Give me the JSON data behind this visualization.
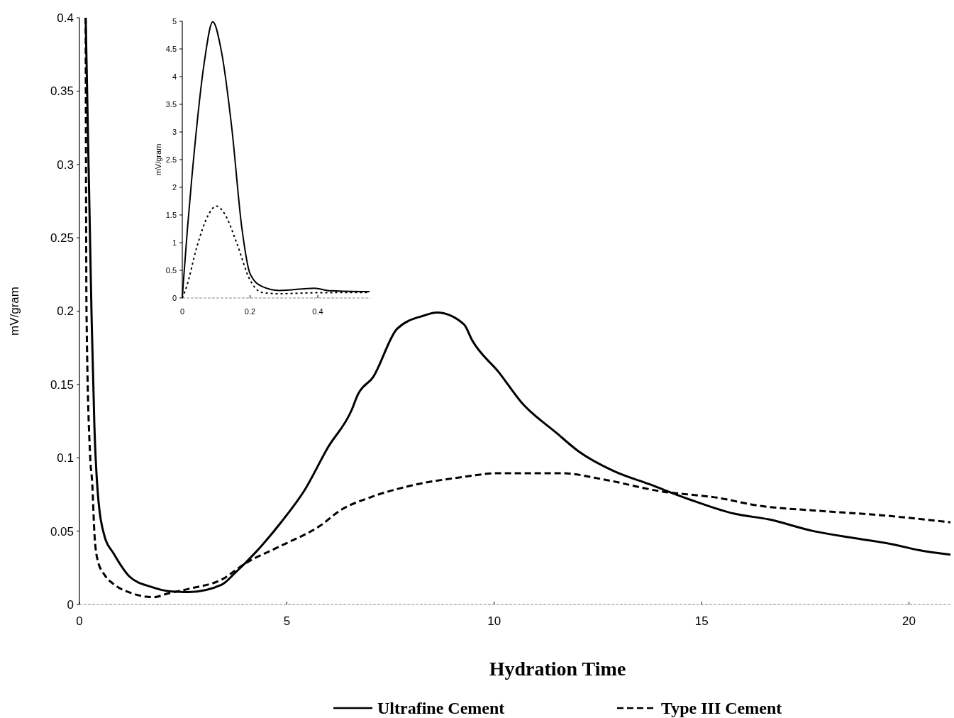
{
  "chart_data": [
    {
      "type": "line",
      "xlabel": "Hydration Time",
      "ylabel": "mV/gram",
      "xlim": [
        0,
        21
      ],
      "ylim": [
        0,
        0.4
      ],
      "xticks": [
        0,
        5,
        10,
        15,
        20
      ],
      "yticks": [
        0,
        0.05,
        0.1,
        0.15,
        0.2,
        0.25,
        0.3,
        0.35,
        0.4
      ],
      "grid": false,
      "legend": "bottom",
      "marker": "none",
      "series": [
        {
          "name": "Ultrafine Cement",
          "color": "#000000",
          "line_style": "solid",
          "x": [
            0.15,
            0.29,
            0.36,
            0.44,
            0.61,
            0.82,
            1.21,
            1.73,
            2.18,
            2.64,
            3.43,
            3.77,
            4.23,
            4.86,
            5.43,
            5.99,
            6.57,
            6.71,
            7.08,
            7.66,
            8.31,
            8.62,
            9.27,
            9.47,
            10.12,
            10.65,
            11.5,
            12.03,
            12.88,
            13.74,
            14.71,
            15.77,
            16.62,
            17.7,
            18.75,
            19.61,
            20.25,
            21
          ],
          "values": [
            0.4,
            0.2,
            0.122,
            0.077,
            0.046,
            0.035,
            0.019,
            0.012,
            0.009,
            0.0085,
            0.0135,
            0.022,
            0.035,
            0.056,
            0.078,
            0.107,
            0.133,
            0.143,
            0.155,
            0.188,
            0.197,
            0.199,
            0.191,
            0.18,
            0.158,
            0.138,
            0.117,
            0.1045,
            0.091,
            0.082,
            0.0716,
            0.062,
            0.058,
            0.05,
            0.045,
            0.041,
            0.037,
            0.034
          ]
        },
        {
          "name": "Type III Cement",
          "color": "#000000",
          "line_style": "dashed",
          "x": [
            0.15,
            0.17,
            0.26,
            0.31,
            0.36,
            0.44,
            0.61,
            0.82,
            1.28,
            1.79,
            2.13,
            2.64,
            3.43,
            4.0,
            4.86,
            5.82,
            6.28,
            7.01,
            7.99,
            9.16,
            10.12,
            11.6,
            12.68,
            13.96,
            15.44,
            16.3,
            17.8,
            19.28,
            21
          ],
          "values": [
            0.4,
            0.2,
            0.1,
            0.082,
            0.049,
            0.03,
            0.02,
            0.014,
            0.0075,
            0.005,
            0.0075,
            0.0107,
            0.017,
            0.028,
            0.04,
            0.054,
            0.064,
            0.073,
            0.081,
            0.0866,
            0.0895,
            0.0895,
            0.085,
            0.0774,
            0.0725,
            0.0677,
            0.0639,
            0.061,
            0.056
          ]
        }
      ]
    },
    {
      "type": "line",
      "ylabel": "mV/gram",
      "xlim": [
        0,
        0.555
      ],
      "ylim": [
        0,
        5
      ],
      "xticks": [
        0,
        0.2,
        0.4
      ],
      "yticks": [
        0,
        0.5,
        1,
        1.5,
        2,
        2.5,
        3,
        3.5,
        4,
        4.5,
        5
      ],
      "grid": false,
      "marker": "none",
      "series": [
        {
          "color": "#000000",
          "line_style": "solid",
          "x": [
            0,
            0.004,
            0.035,
            0.065,
            0.09,
            0.116,
            0.146,
            0.176,
            0.2,
            0.235,
            0.287,
            0.39,
            0.435,
            0.553
          ],
          "values": [
            0,
            0.35,
            2.62,
            4.26,
            4.99,
            4.44,
            3.08,
            1.26,
            0.44,
            0.21,
            0.136,
            0.177,
            0.13,
            0.114
          ]
        },
        {
          "color": "#000000",
          "line_style": "dotted",
          "x": [
            0,
            0.013,
            0.042,
            0.076,
            0.1,
            0.124,
            0.161,
            0.198,
            0.235,
            0.287,
            0.39,
            0.553
          ],
          "values": [
            0,
            0.21,
            0.9,
            1.49,
            1.66,
            1.53,
            0.99,
            0.35,
            0.1,
            0.077,
            0.095,
            0.1
          ]
        }
      ]
    }
  ]
}
